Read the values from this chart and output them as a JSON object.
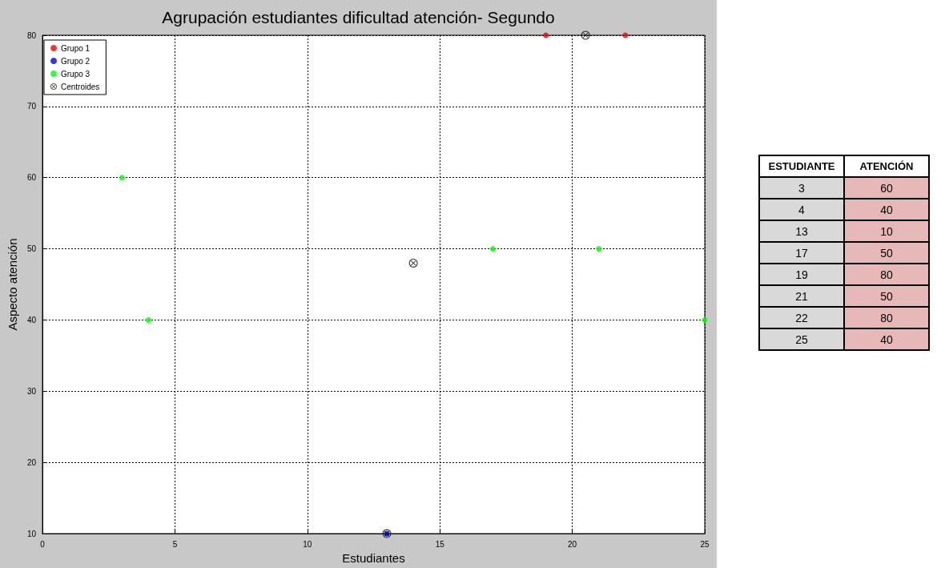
{
  "chart_data": [
    {
      "type": "scatter",
      "title": "Agrupación estudiantes dificultad atención- Segundo",
      "xlabel": "Estudiantes",
      "ylabel": "Aspecto atención",
      "xlim": [
        0,
        25
      ],
      "xticks": [
        0,
        5,
        10,
        15,
        20,
        25
      ],
      "ylim": [
        10,
        80
      ],
      "yticks": [
        10,
        20,
        30,
        40,
        50,
        60,
        70,
        80
      ],
      "grid": true,
      "legend": "top left",
      "marker": "circle",
      "series": [
        {
          "name": "Grupo 1",
          "color": "#ff0000",
          "x": [
            19,
            22
          ],
          "values": [
            80,
            80
          ]
        },
        {
          "name": "Grupo 2",
          "color": "#0000ff",
          "x": [
            13
          ],
          "values": [
            10
          ]
        },
        {
          "name": "Grupo 3",
          "color": "#00ff00",
          "x": [
            3,
            4,
            17,
            21,
            25
          ],
          "values": [
            60,
            40,
            50,
            50,
            40
          ]
        },
        {
          "name": "Centroides",
          "color": "#000000",
          "marker": "cross",
          "x": [
            20.5,
            13,
            14
          ],
          "values": [
            80,
            10,
            48
          ]
        }
      ]
    },
    {
      "type": "other",
      "xlabel": "ESTUDIANTE",
      "ylabel": "ATENCIÓN",
      "color": "#e6b8b7",
      "categories": [
        "3",
        "4",
        "13",
        "17",
        "19",
        "21",
        "22",
        "25"
      ],
      "values": [
        60,
        40,
        10,
        50,
        80,
        50,
        80,
        40
      ],
      "data_labels": true
    }
  ]
}
